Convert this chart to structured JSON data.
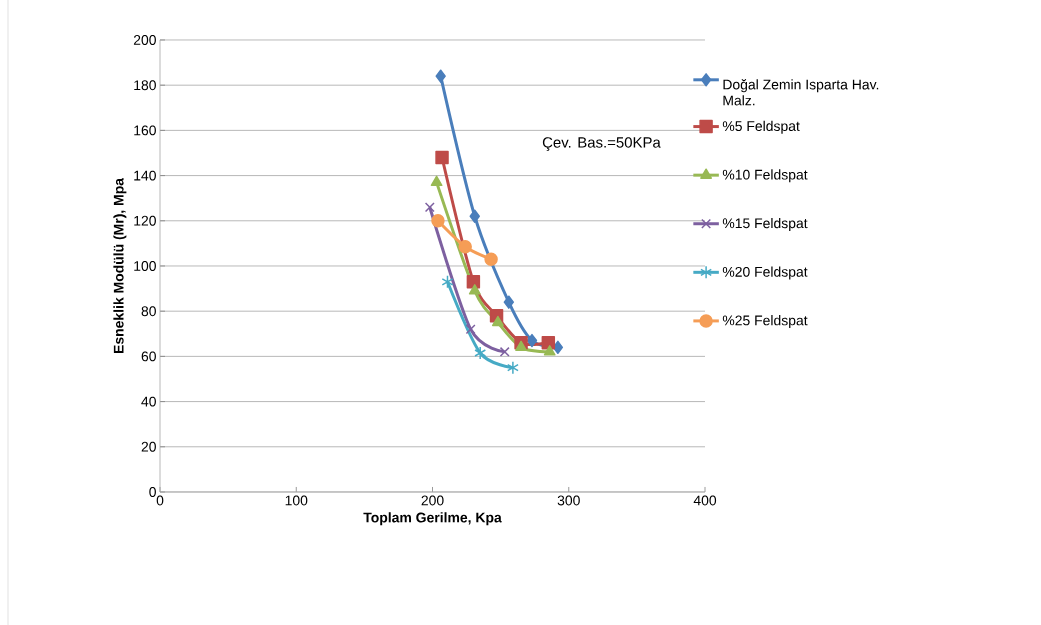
{
  "chart_data": {
    "type": "line",
    "xlabel": "Toplam Gerilme, Kpa",
    "ylabel": "Esneklik Modülü (Mr), Mpa",
    "annotations": [
      "Çev. Bas.=50KPa"
    ],
    "xlim": [
      0,
      400
    ],
    "xticks": [
      0,
      100,
      200,
      300,
      400
    ],
    "ylim": [
      0,
      200
    ],
    "yticks": [
      0,
      20,
      40,
      60,
      80,
      100,
      120,
      140,
      160,
      180,
      200
    ],
    "grid": "y",
    "legend": "right",
    "line_style": "solid",
    "series": [
      {
        "name": "Doğal Zemin Isparta Hav. Malz.",
        "color": "#4a7ebb",
        "marker": "diamond",
        "x": [
          206,
          231,
          256,
          273,
          292
        ],
        "values": [
          184,
          122,
          84,
          67,
          64
        ]
      },
      {
        "name": "%5 Feldspat",
        "color": "#be4b48",
        "marker": "square",
        "x": [
          207,
          230,
          247,
          265,
          285
        ],
        "values": [
          148,
          93,
          78,
          66,
          66
        ]
      },
      {
        "name": "%10 Feldspat",
        "color": "#98b954",
        "marker": "triangle",
        "x": [
          203,
          231,
          248,
          265,
          286
        ],
        "values": [
          137,
          89,
          75,
          64,
          62
        ]
      },
      {
        "name": "%15 Feldspat",
        "color": "#7d60a0",
        "marker": "cross",
        "x": [
          198,
          228,
          253
        ],
        "values": [
          126,
          72,
          62
        ]
      },
      {
        "name": "%20 Feldspat",
        "color": "#46aac5",
        "marker": "cross",
        "x": [
          211,
          235,
          259
        ],
        "values": [
          93,
          61.5,
          55
        ]
      },
      {
        "name": "%25 Feldspat",
        "color": "#f59d56",
        "marker": "circle",
        "x": [
          204,
          224,
          243
        ],
        "values": [
          120,
          108.5,
          103
        ]
      }
    ]
  }
}
